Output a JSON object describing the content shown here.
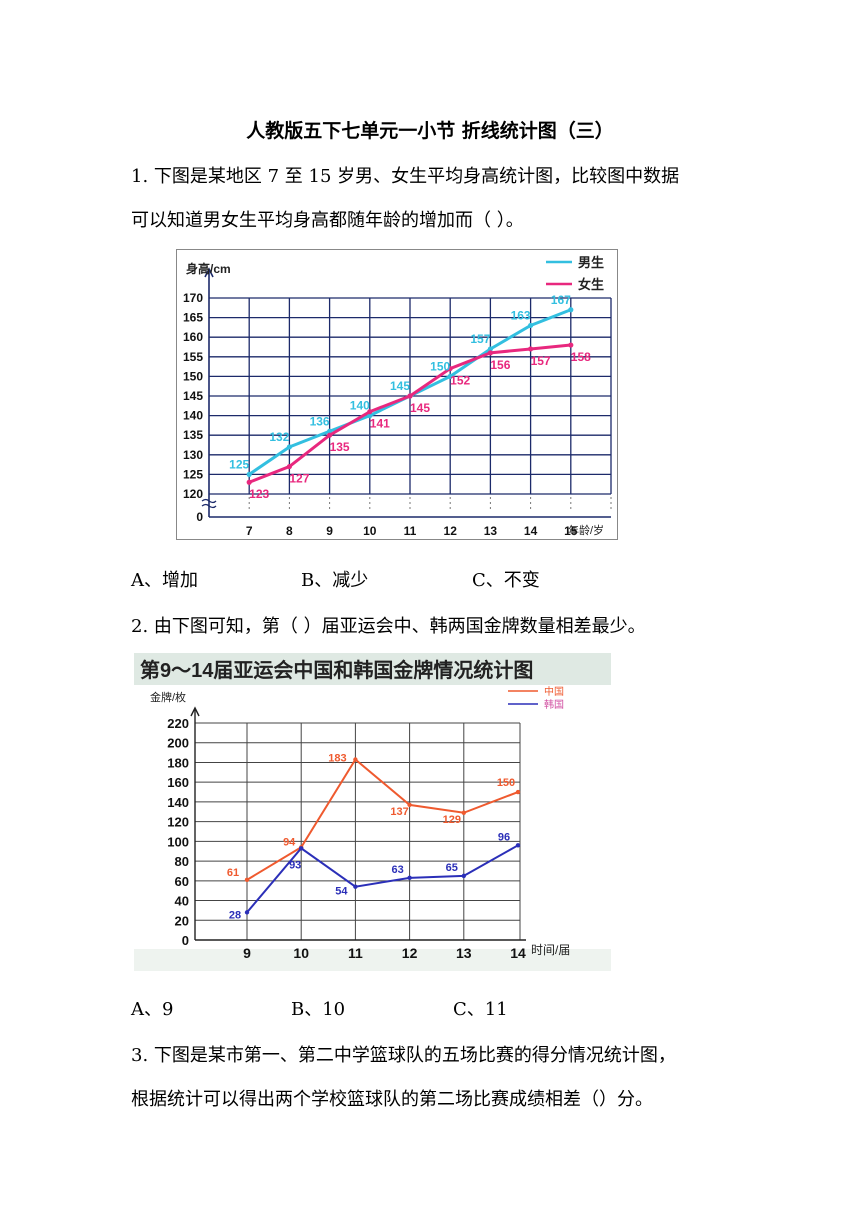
{
  "title": "人教版五下七单元一小节 折线统计图（三）",
  "q1": {
    "line1": "1. 下图是某地区 7 至 15 岁男、女生平均身高统计图，比较图中数据",
    "line2": "可以知道男女生平均身高都随年龄的增加而（ ）。",
    "options": [
      "A、增加",
      "B、减少",
      "C、不变"
    ]
  },
  "q2": {
    "line1": "2. 由下图可知，第（ ）届亚运会中、韩两国金牌数量相差最少。",
    "options": [
      "A、9",
      "B、10",
      "C、11"
    ]
  },
  "q3": {
    "line1": "3. 下图是某市第一、第二中学篮球队的五场比赛的得分情况统计图，",
    "line2": "根据统计可以得出两个学校篮球队的第二场比赛成绩相差（）分。"
  },
  "chart_data": [
    {
      "type": "line",
      "title": "",
      "ylabel": "身高/cm",
      "xlabel": "年龄/岁",
      "categories": [
        "7",
        "8",
        "9",
        "10",
        "11",
        "12",
        "13",
        "14",
        "15"
      ],
      "yticks": [
        "170",
        "165",
        "160",
        "155",
        "150",
        "145",
        "140",
        "135",
        "130",
        "125",
        "120",
        "0"
      ],
      "ylim": [
        120,
        170
      ],
      "axis_break": true,
      "grid": true,
      "legend": "top-right",
      "series": [
        {
          "name": "男生",
          "color": "#33bfe0",
          "values": [
            125,
            132,
            136,
            140,
            145,
            150,
            157,
            163,
            167
          ]
        },
        {
          "name": "女生",
          "color": "#e8287e",
          "values": [
            123,
            127,
            135,
            141,
            145,
            152,
            156,
            157,
            158
          ]
        }
      ]
    },
    {
      "type": "line",
      "title": "第9～14届亚运会中国和韩国金牌情况统计图",
      "ylabel": "金牌/枚",
      "xlabel": "时间/届",
      "categories": [
        "9",
        "10",
        "11",
        "12",
        "13",
        "14"
      ],
      "yticks": [
        "220",
        "200",
        "180",
        "160",
        "140",
        "120",
        "100",
        "80",
        "60",
        "40",
        "20",
        "0"
      ],
      "ylim": [
        0,
        220
      ],
      "grid": true,
      "legend": "top-right",
      "series": [
        {
          "name": "中国",
          "color": "#ef5a2f",
          "values": [
            61,
            94,
            183,
            137,
            129,
            150
          ]
        },
        {
          "name": "韩国",
          "color": "#2b2fb8",
          "values": [
            28,
            93,
            54,
            63,
            65,
            96
          ]
        }
      ]
    }
  ]
}
